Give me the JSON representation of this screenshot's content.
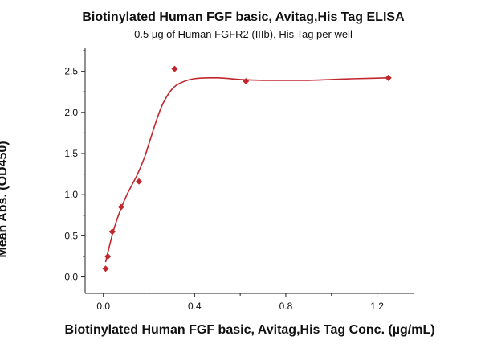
{
  "chart_data": {
    "type": "scatter",
    "title": "Biotinylated Human FGF basic, Avitag,His Tag ELISA",
    "subtitle": "0.5 µg of Human FGFR2 (IIIb), His Tag per well",
    "xlabel": "Biotinylated Human FGF basic, Avitag,His Tag Conc. (µg/mL)",
    "ylabel": "Mean Abs. (OD450)",
    "xlim": [
      -0.08,
      1.36
    ],
    "ylim": [
      -0.2,
      2.78
    ],
    "x_ticks": [
      0.0,
      0.4,
      0.8,
      1.2
    ],
    "x_tick_labels": [
      "0.0",
      "0.4",
      "0.8",
      "1.2"
    ],
    "y_ticks": [
      0.0,
      0.5,
      1.0,
      1.5,
      2.0,
      2.5
    ],
    "y_tick_labels": [
      "0.0",
      "0.5",
      "1.0",
      "1.5",
      "2.0",
      "2.5"
    ],
    "grid": false,
    "legend": "none",
    "series": [
      {
        "marker": "diamond",
        "color": "#c0272d",
        "x": [
          0.0098,
          0.0195,
          0.039,
          0.078,
          0.156,
          0.3125,
          0.625,
          1.25
        ],
        "y": [
          0.1,
          0.25,
          0.55,
          0.85,
          1.16,
          2.53,
          2.38,
          2.42
        ]
      }
    ],
    "fit_curve": {
      "color": "#c0272d",
      "x": [
        0.0098,
        0.02,
        0.04,
        0.06,
        0.08,
        0.1,
        0.12,
        0.15,
        0.18,
        0.2,
        0.23,
        0.26,
        0.3,
        0.34,
        0.4,
        0.5,
        0.6,
        0.7,
        0.8,
        0.9,
        1.0,
        1.1,
        1.25
      ],
      "y": [
        0.18,
        0.3,
        0.52,
        0.7,
        0.85,
        0.98,
        1.09,
        1.25,
        1.45,
        1.62,
        1.88,
        2.1,
        2.28,
        2.36,
        2.41,
        2.42,
        2.4,
        2.39,
        2.39,
        2.39,
        2.4,
        2.41,
        2.42
      ]
    }
  }
}
